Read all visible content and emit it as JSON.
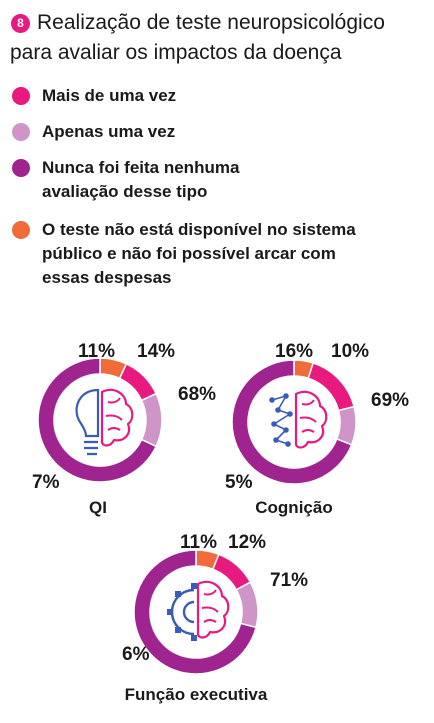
{
  "header": {
    "badge": "8",
    "title_line1": "Realização de teste neuropsicológico",
    "title_line2": "para avaliar os impactos da doença"
  },
  "legend": [
    {
      "label": "Mais de uma vez",
      "color": "#e8197f"
    },
    {
      "label": "Apenas uma vez",
      "color": "#cf95c8"
    },
    {
      "label": "Nunca foi feita nenhuma avaliação desse tipo",
      "color": "#a0248f"
    },
    {
      "label": "O teste não está disponível no sistema público e não foi possível arcar com essas despesas",
      "color": "#f06a3a"
    }
  ],
  "chart_data": [
    {
      "type": "pie",
      "title": "QI",
      "icon": "lightbulb-brain-icon",
      "categories": [
        "Mais de uma vez",
        "Apenas uma vez",
        "Nunca foi feita nenhuma avaliação desse tipo",
        "O teste não está disponível no sistema público e não foi possível arcar com essas despesas"
      ],
      "values": [
        11,
        14,
        68,
        7
      ],
      "labels": [
        "11%",
        "14%",
        "68%",
        "7%"
      ]
    },
    {
      "type": "pie",
      "title": "Cognição",
      "icon": "network-brain-icon",
      "categories": [
        "Mais de uma vez",
        "Apenas uma vez",
        "Nunca foi feita nenhuma avaliação desse tipo",
        "O teste não está disponível no sistema público e não foi possível arcar com essas despesas"
      ],
      "values": [
        16,
        10,
        69,
        5
      ],
      "labels": [
        "16%",
        "10%",
        "69%",
        "5%"
      ]
    },
    {
      "type": "pie",
      "title": "Função executiva",
      "icon": "gear-brain-icon",
      "categories": [
        "Mais de uma vez",
        "Apenas uma vez",
        "Nunca foi feita nenhuma avaliação desse tipo",
        "O teste não está disponível no sistema público e não foi possível arcar com essas despesas"
      ],
      "values": [
        11,
        12,
        71,
        6
      ],
      "labels": [
        "11%",
        "12%",
        "71%",
        "6%"
      ]
    }
  ]
}
